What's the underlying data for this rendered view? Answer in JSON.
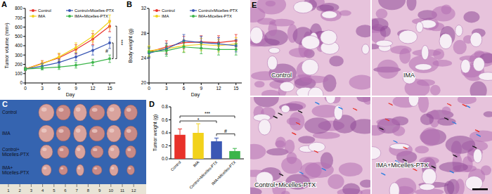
{
  "chart_data": [
    {
      "type": "line",
      "panel_label": "A",
      "x": [
        0,
        3,
        6,
        9,
        12,
        15
      ],
      "xlim": [
        0,
        16
      ],
      "xticks": [
        0,
        3,
        6,
        9,
        12,
        15
      ],
      "ylim": [
        0,
        800
      ],
      "yticks": [
        0,
        100,
        200,
        300,
        400,
        500,
        600,
        700,
        800
      ],
      "x_label": "Day",
      "y_label": "Tumor volume (mm³)",
      "legend": "top",
      "marker": "circle",
      "series": [
        {
          "name": "Control",
          "color": "#e8312a",
          "values": [
            150,
            210,
            270,
            360,
            470,
            610
          ],
          "errors": [
            15,
            30,
            40,
            50,
            60,
            60
          ]
        },
        {
          "name": "IMA",
          "color": "#f2d21b",
          "values": [
            150,
            205,
            280,
            380,
            500,
            660
          ],
          "errors": [
            15,
            30,
            40,
            50,
            60,
            70
          ]
        },
        {
          "name": "Control+Micelles-PTX",
          "color": "#3a57b4",
          "values": [
            150,
            180,
            220,
            280,
            350,
            430
          ],
          "errors": [
            15,
            30,
            30,
            40,
            50,
            60
          ]
        },
        {
          "name": "IMA+Micelles-PTX",
          "color": "#3cb54a",
          "values": [
            150,
            160,
            170,
            190,
            220,
            260
          ],
          "errors": [
            15,
            20,
            25,
            30,
            35,
            40
          ]
        }
      ],
      "annotations": [
        "***",
        "#"
      ]
    },
    {
      "type": "line",
      "panel_label": "B",
      "x": [
        0,
        3,
        6,
        9,
        12,
        15
      ],
      "xlim": [
        0,
        16
      ],
      "xticks": [
        0,
        3,
        6,
        9,
        12,
        15
      ],
      "ylim": [
        20,
        32
      ],
      "yticks": [
        20,
        24,
        28,
        32
      ],
      "x_label": "Day",
      "y_label": "Body weight (g)",
      "legend": "top",
      "marker": "circle",
      "series": [
        {
          "name": "Control",
          "color": "#e8312a",
          "values": [
            25.0,
            25.8,
            26.5,
            26.6,
            26.5,
            26.8
          ],
          "errors": [
            0.8,
            1.0,
            1.0,
            1.0,
            1.1,
            1.0
          ]
        },
        {
          "name": "IMA",
          "color": "#f2d21b",
          "values": [
            25.2,
            25.5,
            26.0,
            26.2,
            26.0,
            26.3
          ],
          "errors": [
            0.8,
            0.9,
            1.0,
            1.0,
            1.0,
            1.0
          ]
        },
        {
          "name": "Control+Micelles-PTX",
          "color": "#3a57b4",
          "values": [
            24.8,
            25.5,
            26.8,
            26.5,
            26.3,
            26.0
          ],
          "errors": [
            0.8,
            0.9,
            1.0,
            1.0,
            1.0,
            1.0
          ]
        },
        {
          "name": "IMA+Micelles-PTX",
          "color": "#3cb54a",
          "values": [
            25.0,
            25.2,
            25.8,
            25.6,
            25.4,
            25.4
          ],
          "errors": [
            0.8,
            0.9,
            0.9,
            0.9,
            0.9,
            0.9
          ]
        }
      ]
    },
    {
      "type": "bar",
      "panel_label": "D",
      "categories": [
        "Control",
        "IMA",
        "Control+Micelles-PTX",
        "IMA+Micelles-PTX"
      ],
      "values": [
        0.37,
        0.4,
        0.27,
        0.12
      ],
      "errors": [
        0.09,
        0.14,
        0.05,
        0.04
      ],
      "colors": [
        "#e8312a",
        "#f2d21b",
        "#3a57b4",
        "#3cb54a"
      ],
      "ylim": [
        0,
        0.8
      ],
      "yticks": [
        {
          "value": 0,
          "label": "0.0"
        },
        0.2,
        0.4,
        0.6,
        0.8
      ],
      "y_label": "Tumor weight (g)",
      "annotations": [
        "*",
        "***",
        "#"
      ]
    }
  ],
  "photo": {
    "panel_label": "C",
    "rows": [
      {
        "label": "Control",
        "tumors": 6
      },
      {
        "label": "IMA",
        "tumors": 6
      },
      {
        "label": "Control+Micelles-PTX",
        "tumors": 6
      },
      {
        "label": "IMA+Micelles-PTX",
        "tumors": 6
      }
    ],
    "ruler": [
      "1",
      "2",
      "3",
      "4",
      "5",
      "6",
      "7",
      "8",
      "9",
      "10",
      "11",
      "12"
    ]
  },
  "histology": {
    "panel_label": "E",
    "images": [
      "Control",
      "IMA",
      "Control+Micelles-PTX",
      "IMA+Micelles-PTX"
    ]
  }
}
